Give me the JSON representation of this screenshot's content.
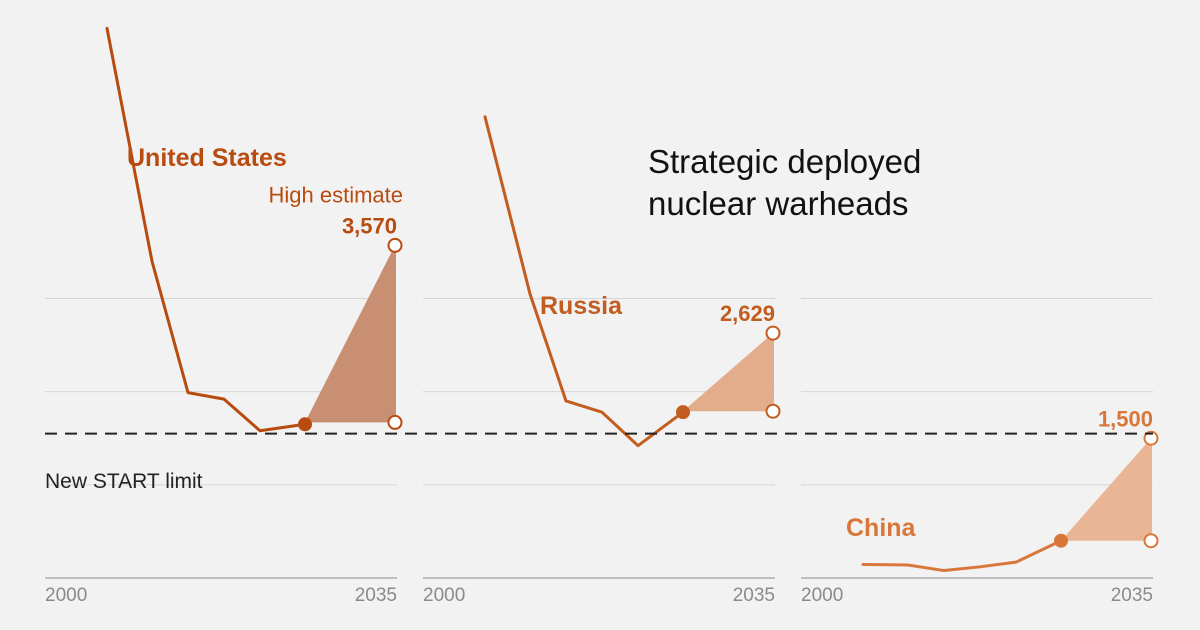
{
  "title_lines": [
    "Strategic deployed",
    "nuclear warheads"
  ],
  "limit_label": "New START limit",
  "limit_value": 1550,
  "colors": {
    "background": "#f2f2f2",
    "grid": "#d6d6d6",
    "axis": "#bfbfbf",
    "tick_text": "#8a8a8a",
    "title": "#111111",
    "limit_line": "#222222",
    "United States": "#b84b10",
    "Russia": "#c35c1f",
    "China": "#d9773a",
    "United States_fill": "#c98f72",
    "Russia_fill": "#e3ad8b",
    "China_fill": "#eab594"
  },
  "chart_data": {
    "type": "line",
    "x_ticks": [
      "2000",
      "2035"
    ],
    "xlim": [
      2000,
      2035
    ],
    "ylim": [
      0,
      6000
    ],
    "grid": "horizontal",
    "panels": [
      {
        "name": "United States",
        "points": [
          [
            2003,
            5900
          ],
          [
            2008,
            3400
          ],
          [
            2012,
            1990
          ],
          [
            2016,
            1920
          ],
          [
            2020,
            1580
          ],
          [
            2025,
            1650
          ]
        ],
        "projection_low": 1670,
        "projection_high": 3570,
        "estimate_label": "High estimate",
        "high_label": "3,570"
      },
      {
        "name": "Russia",
        "points": [
          [
            2003,
            4950
          ],
          [
            2008,
            3050
          ],
          [
            2012,
            1900
          ],
          [
            2016,
            1780
          ],
          [
            2020,
            1420
          ],
          [
            2025,
            1780
          ]
        ],
        "projection_low": 1790,
        "projection_high": 2629,
        "high_label": "2,629"
      },
      {
        "name": "China",
        "points": [
          [
            2003,
            145
          ],
          [
            2008,
            140
          ],
          [
            2012,
            80
          ],
          [
            2016,
            120
          ],
          [
            2020,
            170
          ],
          [
            2025,
            400
          ]
        ],
        "projection_low": 400,
        "projection_high": 1500,
        "high_label": "1,500"
      }
    ]
  }
}
